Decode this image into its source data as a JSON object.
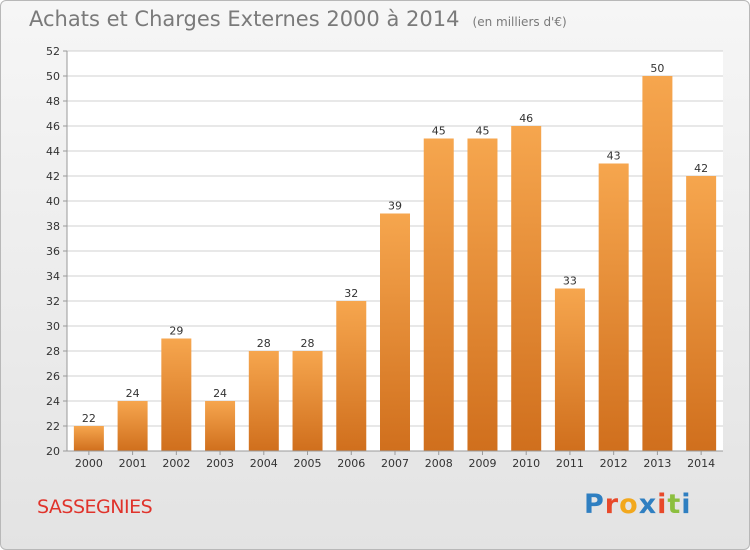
{
  "header": {
    "title": "Achats et Charges Externes 2000 à 2014",
    "subtitle": "(en milliers d'€)"
  },
  "footer": {
    "commune": "SASSEGNIES",
    "logo_text": "Proxiti",
    "logo_colors": [
      "#2f7fc1",
      "#e8492a",
      "#f2a81d",
      "#2f7fc1",
      "#e8492a",
      "#8cbf3f",
      "#2f7fc1"
    ]
  },
  "colors": {
    "bar_top": "#f6a64e",
    "bar_bottom": "#d06f1d",
    "grid": "#d0d0d0",
    "axis": "#999999",
    "title": "#7a7a7a",
    "commune": "#e0332b"
  },
  "chart_data": {
    "type": "bar",
    "title": "Achats et Charges Externes 2000 à 2014",
    "subtitle": "(en milliers d'€)",
    "xlabel": "",
    "ylabel": "",
    "categories": [
      "2000",
      "2001",
      "2002",
      "2003",
      "2004",
      "2005",
      "2006",
      "2007",
      "2008",
      "2009",
      "2010",
      "2011",
      "2012",
      "2013",
      "2014"
    ],
    "values": [
      22,
      24,
      29,
      24,
      28,
      28,
      32,
      39,
      45,
      45,
      46,
      33,
      43,
      50,
      42
    ],
    "ylim": [
      20,
      52
    ],
    "yticks": [
      20,
      22,
      24,
      26,
      28,
      30,
      32,
      34,
      36,
      38,
      40,
      42,
      44,
      46,
      48,
      50,
      52
    ],
    "grid": true,
    "data_labels": true
  }
}
